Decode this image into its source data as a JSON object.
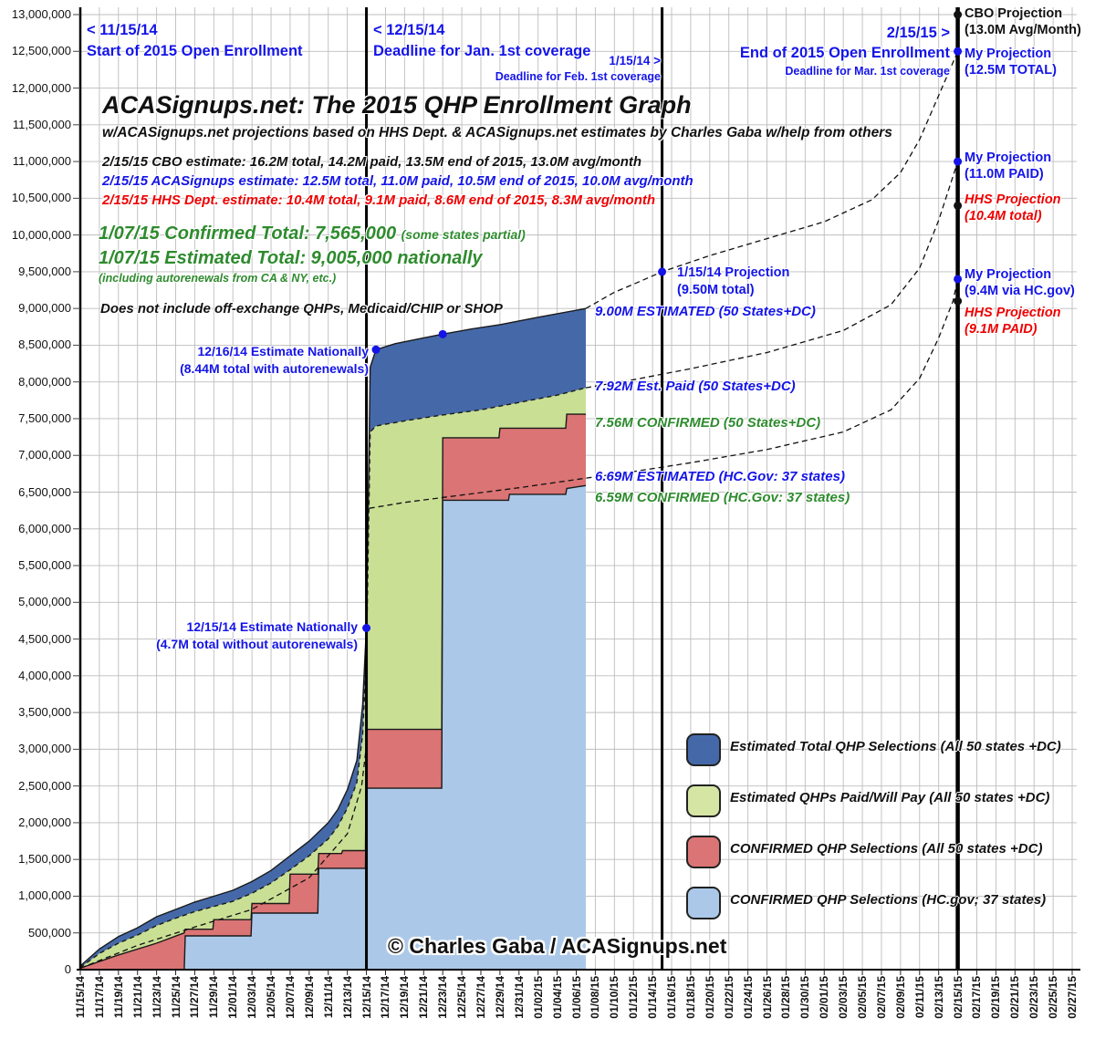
{
  "header": {
    "title": "ACASignups.net: The 2015 QHP Enrollment Graph",
    "subtitle": "w/ACASignups.net projections based on HHS Dept. & ACASignups.net estimates by Charles Gaba w/help from others",
    "estimate_cbo": "2/15/15 CBO estimate: 16.2M total, 14.2M paid, 13.5M end of 2015, 13.0M avg/month",
    "estimate_aca": "2/15/15 ACASignups estimate: 12.5M total, 11.0M paid, 10.5M end of 2015, 10.0M avg/month",
    "estimate_hhs": "2/15/15 HHS Dept. estimate: 10.4M total, 9.1M paid, 8.6M end of 2015, 8.3M avg/month",
    "confirmed_total": "1/07/15 Confirmed Total: 7,565,000",
    "confirmed_total_note": "(some states partial)",
    "estimated_total": "1/07/15 Estimated Total: 9,005,000 nationally",
    "autorenewal_note": "(including autorenewals from CA & NY, etc.)",
    "excludes_note": "Does not include off-exchange QHPs, Medicaid/CHIP or SHOP"
  },
  "date_markers": {
    "open_start_date": "< 11/15/14",
    "open_start_label": "Start of 2015 Open Enrollment",
    "dec15_date": "< 12/15/14",
    "dec15_label": "Deadline for Jan. 1st coverage",
    "jan15_date": "1/15/14 >",
    "jan15_label": "Deadline for Feb. 1st coverage",
    "feb15_date": "2/15/15 >",
    "feb15_label": "End of 2015 Open Enrollment",
    "feb15_sub": "Deadline for Mar. 1st coverage"
  },
  "point_notes": {
    "est_1216_line1": "12/16/14 Estimate Nationally",
    "est_1216_line2": "(8.44M total with autorenewals)",
    "est_1215_line1": "12/15/14 Estimate Nationally",
    "est_1215_line2": "(4.7M total without autorenewals)",
    "proj_0115_line1": "1/15/14 Projection",
    "proj_0115_line2": "(9.50M total)"
  },
  "level_labels": {
    "estimated_total": "9.00M ESTIMATED (50 States+DC)",
    "est_paid": "7.92M Est. Paid (50 States+DC)",
    "confirmed_all": "7.56M CONFIRMED (50 States+DC)",
    "estimated_hcgov": "6.69M ESTIMATED (HC.Gov: 37 states)",
    "confirmed_hcgov": "6.59M CONFIRMED (HC.Gov: 37 states)"
  },
  "projections": {
    "cbo_line1": "CBO Projection",
    "cbo_line2": "(13.0M Avg/Month)",
    "my_total_line1": "My Projection",
    "my_total_line2": "(12.5M TOTAL)",
    "my_paid_line1": "My Projection",
    "my_paid_line2": "(11.0M PAID)",
    "hhs_total_line1": "HHS Projection",
    "hhs_total_line2": "(10.4M total)",
    "my_hcgov_line1": "My Projection",
    "my_hcgov_line2": "(9.4M via HC.gov)",
    "hhs_paid_line1": "HHS Projection",
    "hhs_paid_line2": "(9.1M PAID)"
  },
  "legend": {
    "items": [
      {
        "label": "Estimated Total QHP Selections (All 50 states +DC)",
        "color": "#4569A8"
      },
      {
        "label": "Estimated QHPs Paid/Will Pay (All 50 states +DC)",
        "color": "#D5E6A4"
      },
      {
        "label": "CONFIRMED QHP Selections (All 50 states +DC)",
        "color": "#DB7474"
      },
      {
        "label": "CONFIRMED QHP Selections (HC.gov; 37 states)",
        "color": "#ABC8E9"
      }
    ]
  },
  "copyright": "© Charles Gaba / ACASignups.net",
  "chart_data": {
    "type": "area",
    "title": "ACASignups.net: The 2015 QHP Enrollment Graph",
    "values_unit": "millions of people",
    "ylim": [
      0,
      13000000
    ],
    "y_tick_step": 500000,
    "x_start_date": "11/15/14",
    "x_tick_interval_days": 2,
    "grid": true,
    "legend_position": "lower right",
    "y_tick_labels": [
      "13,000,000",
      "12,500,000",
      "12,000,000",
      "11,500,000",
      "11,000,000",
      "10,500,000",
      "10,000,000",
      "9,500,000",
      "9,000,000",
      "8,500,000",
      "8,000,000",
      "7,500,000",
      "7,000,000",
      "6,500,000",
      "6,000,000",
      "5,500,000",
      "5,000,000",
      "4,500,000",
      "4,000,000",
      "3,500,000",
      "3,000,000",
      "2,500,000",
      "2,000,000",
      "1,500,000",
      "1,000,000",
      "500,000",
      "0"
    ],
    "x_tick_labels": [
      "11/15/14",
      "11/17/14",
      "11/19/14",
      "11/21/14",
      "11/23/14",
      "11/25/14",
      "11/27/14",
      "11/29/14",
      "12/01/14",
      "12/03/14",
      "12/05/14",
      "12/07/14",
      "12/09/14",
      "12/11/14",
      "12/13/14",
      "12/15/14",
      "12/17/14",
      "12/19/14",
      "12/21/14",
      "12/23/14",
      "12/25/14",
      "12/27/14",
      "12/29/14",
      "12/31/14",
      "01/02/15",
      "01/04/15",
      "01/06/15",
      "01/08/15",
      "01/10/15",
      "01/12/15",
      "01/14/15",
      "01/16/15",
      "01/18/15",
      "01/20/15",
      "01/22/15",
      "01/24/15",
      "01/26/15",
      "01/28/15",
      "01/30/15",
      "02/01/15",
      "02/03/15",
      "02/05/15",
      "02/07/15",
      "02/09/15",
      "02/11/15",
      "02/13/15",
      "02/15/15",
      "02/17/15",
      "02/19/15",
      "02/21/15",
      "02/23/15",
      "02/25/15",
      "02/27/15"
    ],
    "series": [
      {
        "name": "Estimated Total QHP Selections (All 50 states +DC)",
        "color": "#4569A8",
        "outline": "solid",
        "points": [
          [
            0,
            0.05
          ],
          [
            2,
            0.28
          ],
          [
            4,
            0.45
          ],
          [
            6,
            0.57
          ],
          [
            8,
            0.72
          ],
          [
            10,
            0.82
          ],
          [
            12,
            0.92
          ],
          [
            14,
            1.0
          ],
          [
            16,
            1.08
          ],
          [
            18,
            1.2
          ],
          [
            20,
            1.35
          ],
          [
            22,
            1.55
          ],
          [
            24,
            1.75
          ],
          [
            26,
            2.0
          ],
          [
            27,
            2.18
          ],
          [
            28,
            2.45
          ],
          [
            29,
            2.85
          ],
          [
            29.6,
            3.6
          ],
          [
            30,
            4.68
          ],
          [
            30.4,
            8.2
          ],
          [
            31,
            8.44
          ],
          [
            33,
            8.52
          ],
          [
            36,
            8.6
          ],
          [
            38,
            8.65
          ],
          [
            41,
            8.72
          ],
          [
            44,
            8.78
          ],
          [
            48,
            8.88
          ],
          [
            53,
            9.0
          ]
        ]
      },
      {
        "name": "Estimated QHPs Paid/Will Pay (All 50 states +DC)",
        "color": "#C9DF94",
        "outline": "dashed",
        "points": [
          [
            0,
            0.03
          ],
          [
            2,
            0.22
          ],
          [
            4,
            0.36
          ],
          [
            6,
            0.47
          ],
          [
            8,
            0.6
          ],
          [
            10,
            0.7
          ],
          [
            12,
            0.79
          ],
          [
            14,
            0.86
          ],
          [
            16,
            0.93
          ],
          [
            18,
            1.04
          ],
          [
            20,
            1.18
          ],
          [
            22,
            1.36
          ],
          [
            24,
            1.55
          ],
          [
            26,
            1.78
          ],
          [
            27,
            1.95
          ],
          [
            28,
            2.2
          ],
          [
            29,
            2.55
          ],
          [
            29.6,
            3.2
          ],
          [
            30,
            4.3
          ],
          [
            30.4,
            7.32
          ],
          [
            31,
            7.4
          ],
          [
            34,
            7.47
          ],
          [
            38,
            7.55
          ],
          [
            42,
            7.62
          ],
          [
            46,
            7.72
          ],
          [
            50,
            7.82
          ],
          [
            53,
            7.92
          ]
        ]
      },
      {
        "name": "CONFIRMED QHP Selections (All 50 states +DC)",
        "color": "#DB7474",
        "outline": "solid",
        "points": [
          [
            0,
            0.02
          ],
          [
            4,
            0.2
          ],
          [
            8,
            0.36
          ],
          [
            10.9,
            0.5
          ],
          [
            11,
            0.55
          ],
          [
            13.9,
            0.55
          ],
          [
            14,
            0.68
          ],
          [
            17.9,
            0.68
          ],
          [
            18,
            0.9
          ],
          [
            21.9,
            0.9
          ],
          [
            22,
            1.3
          ],
          [
            24.9,
            1.3
          ],
          [
            25,
            1.58
          ],
          [
            27.4,
            1.58
          ],
          [
            27.5,
            1.62
          ],
          [
            29.9,
            1.62
          ],
          [
            30,
            3.27
          ],
          [
            37.9,
            3.27
          ],
          [
            38,
            7.24
          ],
          [
            43.9,
            7.24
          ],
          [
            44,
            7.37
          ],
          [
            50.9,
            7.37
          ],
          [
            51,
            7.56
          ],
          [
            53,
            7.56
          ]
        ]
      },
      {
        "name": "CONFIRMED QHP Selections (HC.gov; 37 states)",
        "color": "#ABC8E9",
        "outline": "solid",
        "points": [
          [
            0,
            0
          ],
          [
            10.9,
            0
          ],
          [
            11,
            0.46
          ],
          [
            17.9,
            0.46
          ],
          [
            18,
            0.77
          ],
          [
            24.9,
            0.77
          ],
          [
            25,
            1.38
          ],
          [
            29.9,
            1.38
          ],
          [
            30,
            2.47
          ],
          [
            37.9,
            2.47
          ],
          [
            38,
            6.39
          ],
          [
            44.9,
            6.39
          ],
          [
            45,
            6.47
          ],
          [
            50.9,
            6.47
          ],
          [
            51,
            6.55
          ],
          [
            53,
            6.59
          ]
        ]
      }
    ],
    "dashed_lines": [
      {
        "name": "hcgov-estimated-pre-1215",
        "points": [
          [
            0,
            0.02
          ],
          [
            6,
            0.33
          ],
          [
            12,
            0.58
          ],
          [
            18,
            0.82
          ],
          [
            24,
            1.25
          ],
          [
            28,
            1.85
          ],
          [
            29.5,
            2.5
          ],
          [
            30,
            3.05
          ]
        ]
      },
      {
        "name": "hcgov-estimated-and-projection",
        "points": [
          [
            30.3,
            6.28
          ],
          [
            34,
            6.36
          ],
          [
            40,
            6.46
          ],
          [
            46,
            6.56
          ],
          [
            53,
            6.69
          ],
          [
            58,
            6.78
          ],
          [
            64,
            6.9
          ],
          [
            72,
            7.08
          ],
          [
            80,
            7.32
          ],
          [
            85,
            7.62
          ],
          [
            88,
            8.05
          ],
          [
            90,
            8.6
          ],
          [
            91.5,
            9.1
          ],
          [
            92,
            9.4
          ]
        ]
      },
      {
        "name": "paid-projection",
        "points": [
          [
            53,
            7.92
          ],
          [
            58,
            8.03
          ],
          [
            64,
            8.18
          ],
          [
            72,
            8.4
          ],
          [
            80,
            8.7
          ],
          [
            85,
            9.05
          ],
          [
            88,
            9.55
          ],
          [
            90,
            10.2
          ],
          [
            91.5,
            10.8
          ],
          [
            92,
            11.0
          ]
        ]
      },
      {
        "name": "total-projection",
        "points": [
          [
            53,
            9.0
          ],
          [
            56,
            9.22
          ],
          [
            58,
            9.33
          ],
          [
            61,
            9.5
          ],
          [
            66,
            9.72
          ],
          [
            72,
            9.95
          ],
          [
            78,
            10.18
          ],
          [
            83,
            10.48
          ],
          [
            86,
            10.85
          ],
          [
            88,
            11.3
          ],
          [
            90,
            11.9
          ],
          [
            91.5,
            12.35
          ],
          [
            92,
            12.5
          ]
        ]
      }
    ],
    "reference_lines": [
      {
        "date": "11/15/14",
        "day": 0,
        "width": 2.5
      },
      {
        "date": "12/15/14",
        "day": 30,
        "width": 3
      },
      {
        "date": "01/15/15",
        "day": 61,
        "width": 3
      },
      {
        "date": "02/15/15",
        "day": 92,
        "width": 4.5
      }
    ],
    "markers": [
      {
        "day": 30,
        "value": 4.65,
        "color": "blue",
        "label": "12/15/14 estimate 4.7M"
      },
      {
        "day": 31,
        "value": 8.44,
        "color": "blue",
        "label": "12/16/14 estimate 8.44M"
      },
      {
        "day": 38,
        "value": 8.65,
        "color": "blue",
        "label": "12/23 estimate"
      },
      {
        "day": 61,
        "value": 9.5,
        "color": "blue",
        "label": "1/15 projection 9.50M"
      },
      {
        "day": 92,
        "value": 12.5,
        "color": "blue",
        "label": "My projection 12.5M total"
      },
      {
        "day": 92,
        "value": 11.0,
        "color": "blue",
        "label": "My projection 11.0M paid"
      },
      {
        "day": 92,
        "value": 9.4,
        "color": "blue",
        "label": "My projection 9.4M HC.gov"
      },
      {
        "day": 92,
        "value": 13.0,
        "color": "black",
        "label": "CBO projection 13.0M"
      },
      {
        "day": 92,
        "value": 10.4,
        "color": "black",
        "label": "HHS projection 10.4M total"
      },
      {
        "day": 92,
        "value": 9.1,
        "color": "black",
        "label": "HHS projection 9.1M paid"
      }
    ]
  }
}
